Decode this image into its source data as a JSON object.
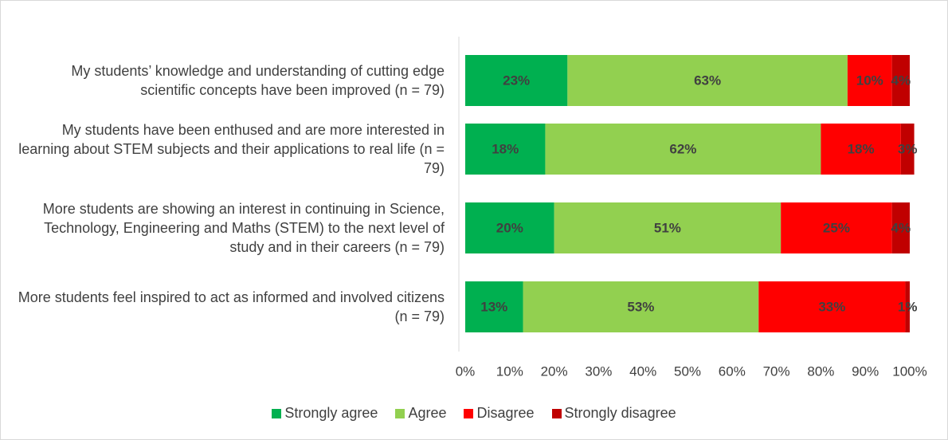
{
  "chart_data": {
    "type": "stacked-barh",
    "categories": [
      "My students’ knowledge and understanding of cutting edge scientific concepts have been improved (n = 79)",
      "My students have been enthused and are more interested in learning about STEM subjects and their applications to real life (n = 79)",
      "More students are showing an interest in continuing in Science, Technology, Engineering and Maths (STEM) to the next level of study and in their careers (n = 79)",
      "More students feel inspired to act as informed and involved citizens (n = 79)"
    ],
    "series": [
      {
        "name": "Strongly agree",
        "color": "#00b050",
        "values": [
          23,
          18,
          20,
          13
        ],
        "value_labels": [
          "23%",
          "18%",
          "20%",
          "13%"
        ]
      },
      {
        "name": "Agree",
        "color": "#92d050",
        "values": [
          63,
          62,
          51,
          53
        ],
        "value_labels": [
          "63%",
          "62%",
          "51%",
          "53%"
        ]
      },
      {
        "name": "Disagree",
        "color": "#ff0000",
        "values": [
          10,
          18,
          25,
          33
        ],
        "value_labels": [
          "10%",
          "18%",
          "25%",
          "33%"
        ]
      },
      {
        "name": "Strongly disagree",
        "color": "#c00000",
        "values": [
          4,
          3,
          4,
          1
        ],
        "value_labels": [
          "4%",
          "3%",
          "4%",
          "1%"
        ]
      }
    ],
    "xlim": [
      0,
      100
    ],
    "xticks": [
      {
        "value": 0,
        "label": "0%"
      },
      {
        "value": 10,
        "label": "10%"
      },
      {
        "value": 20,
        "label": "20%"
      },
      {
        "value": 30,
        "label": "30%"
      },
      {
        "value": 40,
        "label": "40%"
      },
      {
        "value": 50,
        "label": "50%"
      },
      {
        "value": 60,
        "label": "60%"
      },
      {
        "value": 70,
        "label": "70%"
      },
      {
        "value": 80,
        "label": "80%"
      },
      {
        "value": 90,
        "label": "90%"
      },
      {
        "value": 100,
        "label": "100%"
      }
    ],
    "grid": false,
    "legend": "bottom"
  }
}
